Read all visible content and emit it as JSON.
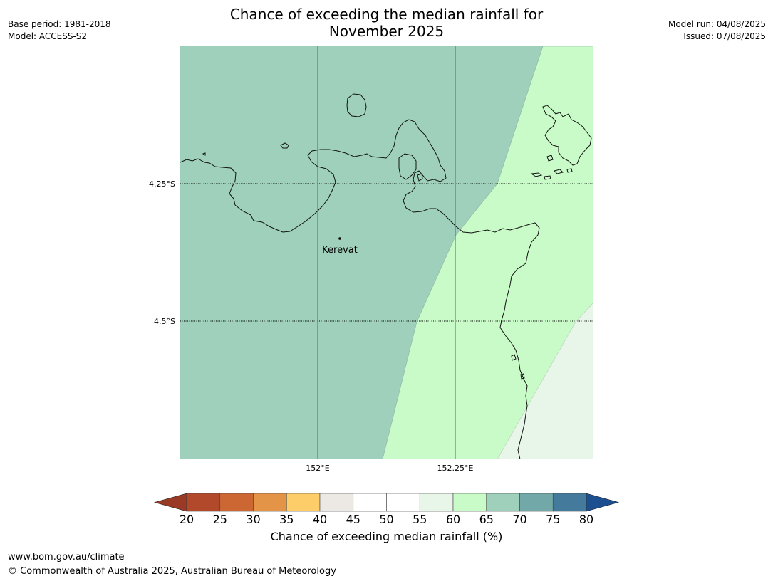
{
  "title_line1": "Chance of exceeding the median rainfall for",
  "title_line2": "November 2025",
  "meta_left": {
    "base_period": "Base period: 1981-2018",
    "model": "Model: ACCESS-S2"
  },
  "meta_right": {
    "model_run": "Model run: 04/08/2025",
    "issued": "Issued: 07/08/2025"
  },
  "map": {
    "lat_labels": [
      "4.25°S",
      "4.5°S"
    ],
    "lon_labels": [
      "152°E",
      "152.25°E"
    ],
    "place_name": "Kerevat"
  },
  "colorbar": {
    "label": "Chance of exceeding median rainfall (%)",
    "ticks": [
      "20",
      "25",
      "30",
      "35",
      "40",
      "45",
      "50",
      "55",
      "60",
      "65",
      "70",
      "75",
      "80"
    ],
    "colors": [
      "#b2492a",
      "#cc6633",
      "#e39447",
      "#fdcd6a",
      "#ece8e4",
      "#ffffff",
      "#ffffff",
      "#e8f5e9",
      "#c9fbc9",
      "#9ed0bb",
      "#72a8a8",
      "#447a9b"
    ],
    "under_color": "#9b3a24",
    "over_color": "#1b4f8f"
  },
  "footer": {
    "url": "www.bom.gov.au/climate",
    "copyright": "© Commonwealth of Australia 2025, Australian Bureau of Meteorology"
  }
}
